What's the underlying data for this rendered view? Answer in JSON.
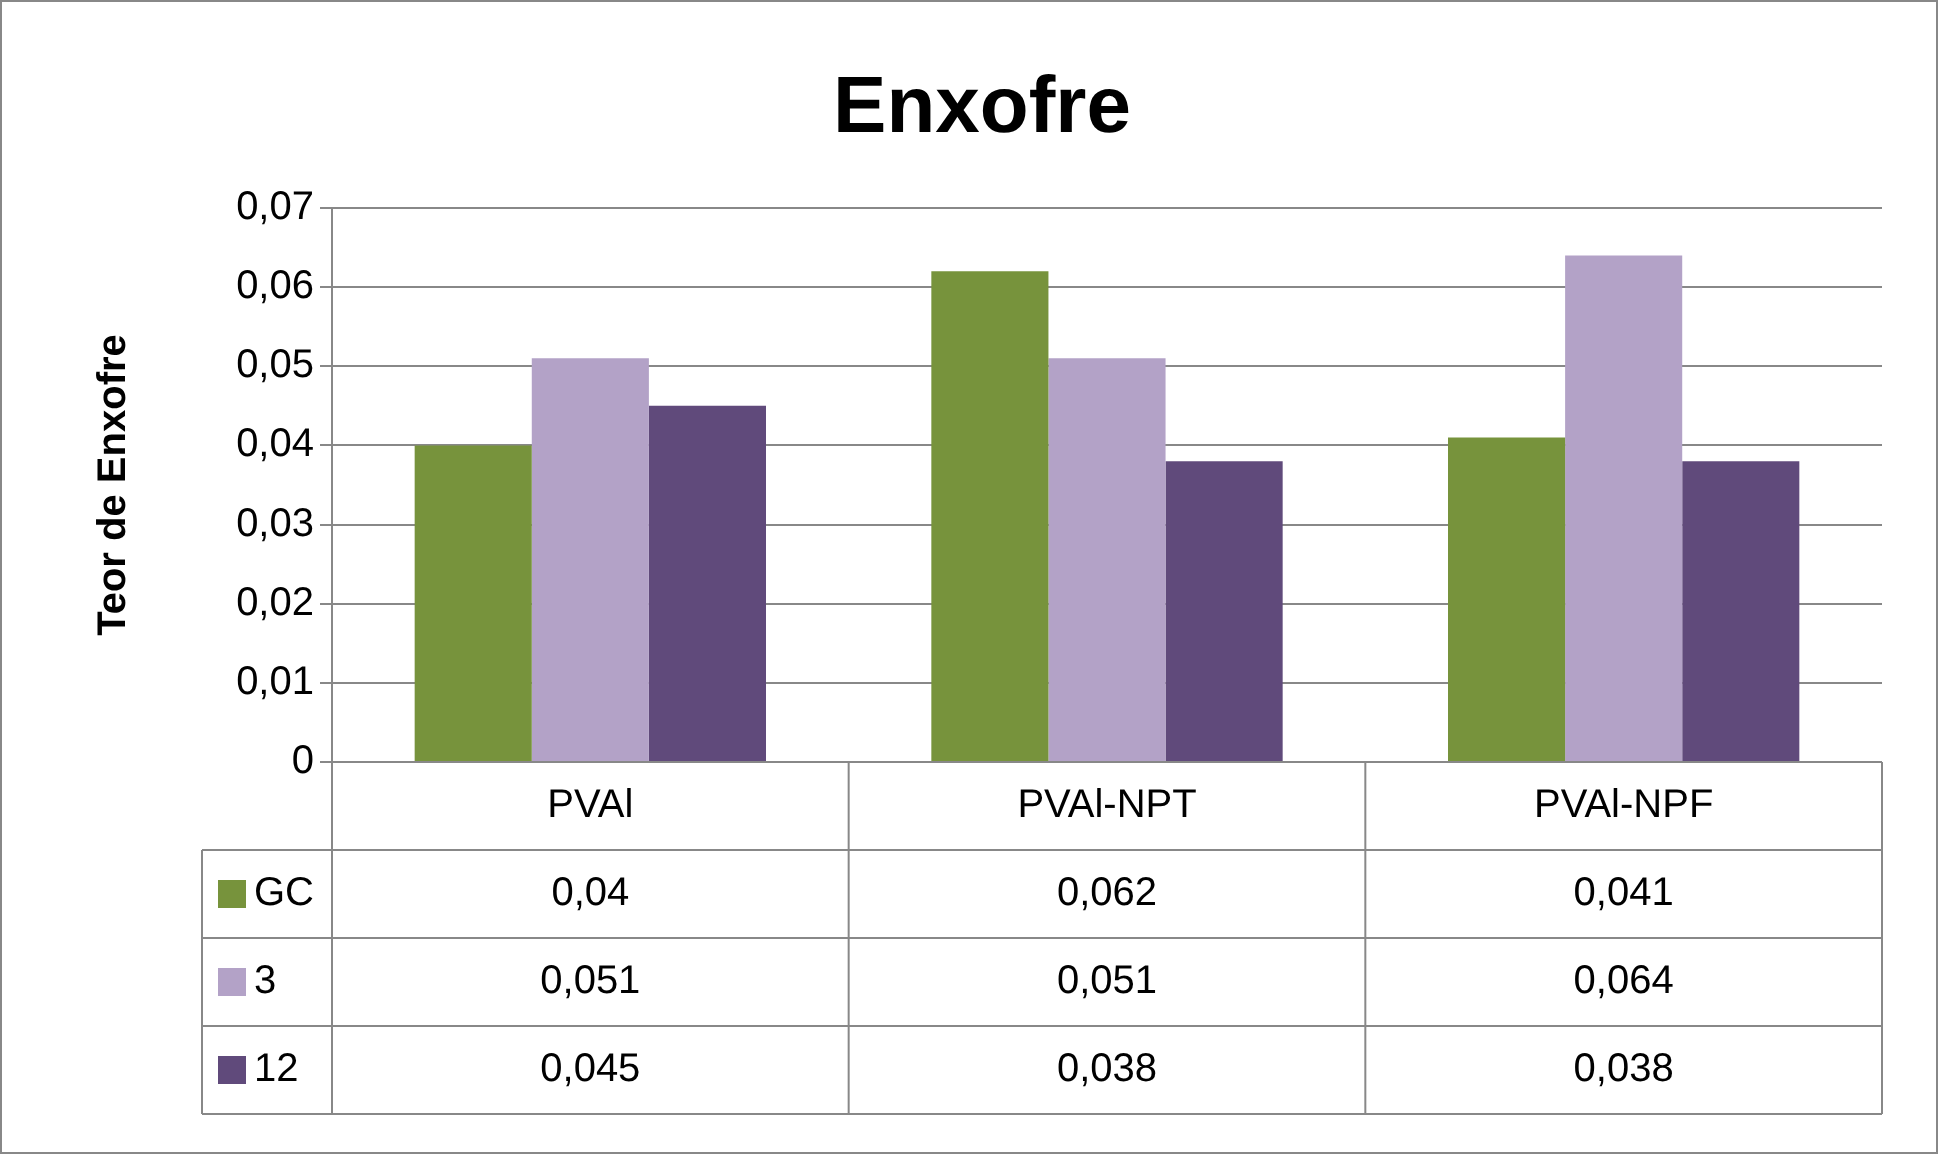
{
  "chart_data": {
    "type": "bar",
    "title": "Enxofre",
    "ylabel": "Teor de Enxofre",
    "categories": [
      "PVAl",
      "PVAl-NPT",
      "PVAl-NPF"
    ],
    "series": [
      {
        "name": "GC",
        "color": "#77933c",
        "values": [
          0.04,
          0.062,
          0.041
        ],
        "value_labels": [
          "0,04",
          "0,062",
          "0,041"
        ]
      },
      {
        "name": "3",
        "color": "#b3a2c7",
        "values": [
          0.051,
          0.051,
          0.064
        ],
        "value_labels": [
          "0,051",
          "0,051",
          "0,064"
        ]
      },
      {
        "name": "12",
        "color": "#604a7b",
        "values": [
          0.045,
          0.038,
          0.038
        ],
        "value_labels": [
          "0,045",
          "0,038",
          "0,038"
        ]
      }
    ],
    "ylim": [
      0,
      0.07
    ],
    "yticks": [
      {
        "value": 0,
        "label": "0"
      },
      {
        "value": 0.01,
        "label": "0,01"
      },
      {
        "value": 0.02,
        "label": "0,02"
      },
      {
        "value": 0.03,
        "label": "0,03"
      },
      {
        "value": 0.04,
        "label": "0,04"
      },
      {
        "value": 0.05,
        "label": "0,05"
      },
      {
        "value": 0.06,
        "label": "0,06"
      },
      {
        "value": 0.07,
        "label": "0,07"
      }
    ],
    "grid": "y",
    "legend": "bottom"
  }
}
